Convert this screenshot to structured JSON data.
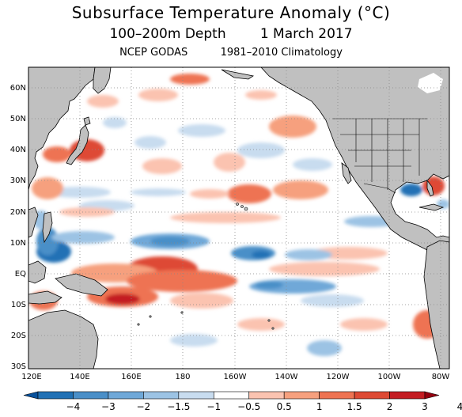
{
  "titles": {
    "line1": "Subsurface Temperature Anomaly (°C)",
    "line2": "100–200m Depth        1 March 2017",
    "line3": "NCEP GODAS          1981–2010 Climatology"
  },
  "map": {
    "lat_labels": [
      "60N",
      "50N",
      "40N",
      "30N",
      "20N",
      "10N",
      "EQ",
      "10S",
      "20S",
      "30S"
    ],
    "lon_labels": [
      "120E",
      "140E",
      "160E",
      "180",
      "160W",
      "140W",
      "120W",
      "100W",
      "80W"
    ],
    "lat_range": [
      -30,
      66
    ],
    "lon_range_east": [
      120,
      283
    ],
    "land_color": "#c0c0c0",
    "coast_color": "#000000",
    "grid": "dotted"
  },
  "colorbar": {
    "labels": [
      "−4",
      "−3",
      "−2",
      "−1.5",
      "−1",
      "−0.5",
      "0.5",
      "1",
      "1.5",
      "2",
      "3",
      "4"
    ],
    "colors": [
      "#08519c",
      "#2171b5",
      "#4a8fc8",
      "#6fa8d8",
      "#9cc3e4",
      "#c8dcef",
      "#ffffff",
      "#fbc3b0",
      "#f6a07e",
      "#ee7352",
      "#de4a34",
      "#c41c22",
      "#94000f"
    ]
  }
}
